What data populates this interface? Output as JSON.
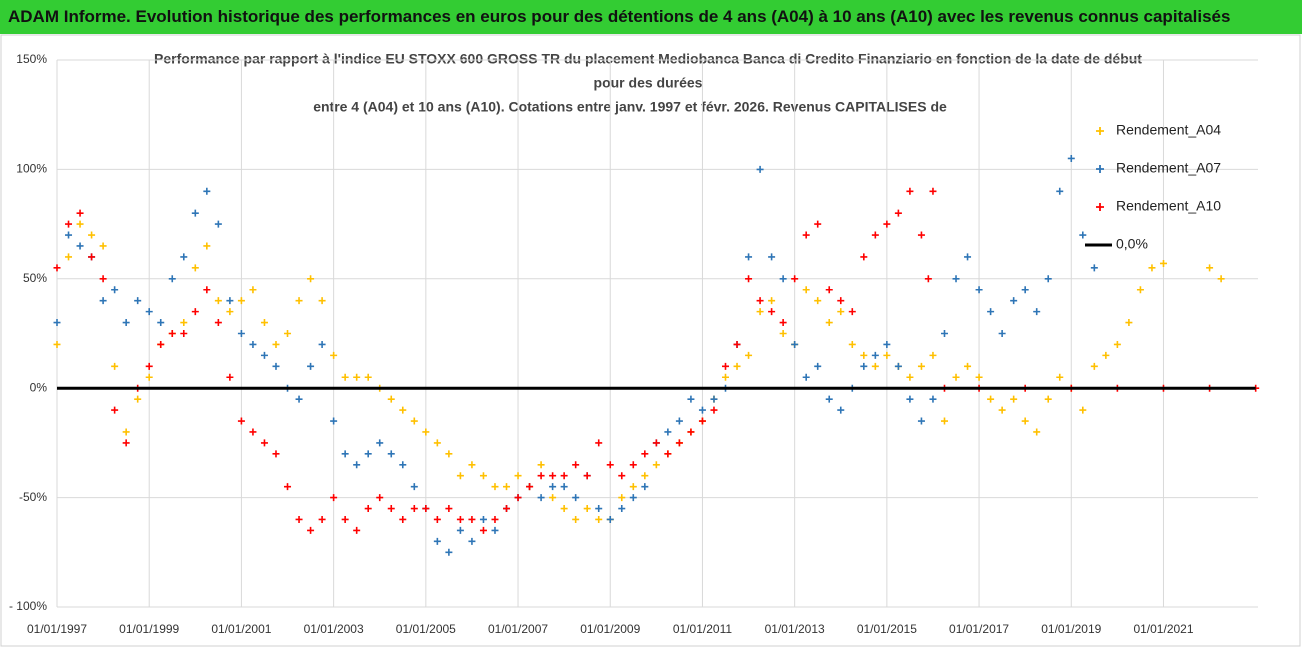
{
  "chart_data": {
    "type": "scatter",
    "title": "ADAM Informe. Evolution historique des performances en euros pour des détentions de 4 ans (A04) à 10 ans (A10) avec les revenus connus capitalisés",
    "subtitle": [
      "Performance par rapport à l'indice EU STOXX 600 GROSS TR  du placement Mediobanca Banca di Credito Finanziario en fonction de la date de début",
      "pour des durées",
      "entre 4 (A04) et 10 ans (A10).  Cotations entre janv. 1997 et févr. 2026. Revenus CAPITALISES de"
    ],
    "xlim": [
      1997,
      2023.05
    ],
    "xticks": [
      {
        "value": 1997,
        "label": "01/01/1997"
      },
      {
        "value": 1999,
        "label": "01/01/1999"
      },
      {
        "value": 2001,
        "label": "01/01/2001"
      },
      {
        "value": 2003,
        "label": "01/01/2003"
      },
      {
        "value": 2005,
        "label": "01/01/2005"
      },
      {
        "value": 2007,
        "label": "01/01/2007"
      },
      {
        "value": 2009,
        "label": "01/01/2009"
      },
      {
        "value": 2011,
        "label": "01/01/2011"
      },
      {
        "value": 2013,
        "label": "01/01/2013"
      },
      {
        "value": 2015,
        "label": "01/01/2015"
      },
      {
        "value": 2017,
        "label": "01/01/2017"
      },
      {
        "value": 2019,
        "label": "01/01/2019"
      },
      {
        "value": 2021,
        "label": "01/01/2021"
      }
    ],
    "ylim": [
      -100,
      150
    ],
    "yticks": [
      {
        "value": -100,
        "label": "- 100%"
      },
      {
        "value": -50,
        "label": "-50%"
      },
      {
        "value": 0,
        "label": "0%"
      },
      {
        "value": 50,
        "label": "50%"
      },
      {
        "value": 100,
        "label": "100%"
      },
      {
        "value": 150,
        "label": "150%"
      }
    ],
    "grid": true,
    "legend": "right",
    "series": [
      {
        "name": "Rendement_A04",
        "color": "#ffc000",
        "x": [
          1997,
          1997.25,
          1997.5,
          1997.75,
          1998,
          1998.25,
          1998.5,
          1998.75,
          1999,
          1999.25,
          1999.5,
          1999.75,
          2000,
          2000.25,
          2000.5,
          2000.75,
          2001,
          2001.25,
          2001.5,
          2001.75,
          2002,
          2002.25,
          2002.5,
          2002.75,
          2003,
          2003.25,
          2003.5,
          2003.75,
          2004,
          2004.25,
          2004.5,
          2004.75,
          2005,
          2005.25,
          2005.5,
          2005.75,
          2006,
          2006.25,
          2006.5,
          2006.75,
          2007,
          2007.25,
          2007.5,
          2007.75,
          2008,
          2008.25,
          2008.5,
          2008.75,
          2009,
          2009.25,
          2009.5,
          2009.75,
          2010,
          2010.25,
          2010.5,
          2010.75,
          2011,
          2011.25,
          2011.5,
          2011.75,
          2012,
          2012.25,
          2012.5,
          2012.75,
          2013,
          2013.25,
          2013.5,
          2013.75,
          2014,
          2014.25,
          2014.5,
          2014.75,
          2015,
          2015.25,
          2015.5,
          2015.75,
          2016,
          2016.25,
          2016.5,
          2016.75,
          2017,
          2017.25,
          2017.5,
          2017.75,
          2018,
          2018.25,
          2018.5,
          2018.75,
          2019,
          2019.25,
          2019.5,
          2019.75,
          2020,
          2020.25,
          2020.5,
          2020.75,
          2021,
          2022,
          2022.25
        ],
        "values": [
          20,
          60,
          75,
          70,
          65,
          10,
          -20,
          -5,
          5,
          20,
          25,
          30,
          55,
          65,
          40,
          35,
          40,
          45,
          30,
          20,
          25,
          40,
          50,
          40,
          15,
          5,
          5,
          5,
          0,
          -5,
          -10,
          -15,
          -20,
          -25,
          -30,
          -40,
          -35,
          -40,
          -45,
          -45,
          -40,
          -45,
          -35,
          -50,
          -55,
          -60,
          -55,
          -60,
          -60,
          -50,
          -45,
          -40,
          -35,
          -30,
          -25,
          -20,
          -15,
          -5,
          5,
          10,
          15,
          35,
          40,
          25,
          20,
          45,
          40,
          30,
          35,
          20,
          15,
          10,
          15,
          10,
          5,
          10,
          15,
          -15,
          5,
          10,
          5,
          -5,
          -10,
          -5,
          -15,
          -20,
          -5,
          5,
          0,
          -10,
          10,
          15,
          20,
          30,
          45,
          55,
          57,
          55,
          50
        ]
      },
      {
        "name": "Rendement_A07",
        "color": "#2e75b6",
        "x": [
          1997,
          1997.25,
          1997.5,
          1997.75,
          1998,
          1998.25,
          1998.5,
          1998.75,
          1999,
          1999.25,
          1999.5,
          1999.75,
          2000,
          2000.25,
          2000.5,
          2000.75,
          2001,
          2001.25,
          2001.5,
          2001.75,
          2002,
          2002.25,
          2002.5,
          2002.75,
          2003,
          2003.25,
          2003.5,
          2003.75,
          2004,
          2004.25,
          2004.5,
          2004.75,
          2005,
          2005.25,
          2005.5,
          2005.75,
          2006,
          2006.25,
          2006.5,
          2006.75,
          2007,
          2007.25,
          2007.5,
          2007.75,
          2008,
          2008.25,
          2008.5,
          2008.75,
          2009,
          2009.25,
          2009.5,
          2009.75,
          2010,
          2010.25,
          2010.5,
          2010.75,
          2011,
          2011.25,
          2011.5,
          2011.75,
          2012,
          2012.25,
          2012.5,
          2012.75,
          2013,
          2013.25,
          2013.5,
          2013.75,
          2014,
          2014.25,
          2014.5,
          2014.75,
          2015,
          2015.25,
          2015.5,
          2015.75,
          2016,
          2016.25,
          2016.5,
          2016.75,
          2017,
          2017.25,
          2017.5,
          2017.75,
          2018,
          2018.25,
          2018.5,
          2018.75,
          2019,
          2019.25,
          2019.5
        ],
        "values": [
          30,
          70,
          65,
          60,
          40,
          45,
          30,
          40,
          35,
          30,
          50,
          60,
          80,
          90,
          75,
          40,
          25,
          20,
          15,
          10,
          0,
          -5,
          10,
          20,
          -15,
          -30,
          -35,
          -30,
          -25,
          -30,
          -35,
          -45,
          -55,
          -70,
          -75,
          -65,
          -70,
          -60,
          -65,
          -55,
          -50,
          -45,
          -50,
          -45,
          -45,
          -50,
          -40,
          -55,
          -60,
          -55,
          -50,
          -45,
          -25,
          -20,
          -15,
          -5,
          -10,
          -5,
          0,
          20,
          60,
          100,
          60,
          50,
          20,
          5,
          10,
          -5,
          -10,
          0,
          10,
          15,
          20,
          10,
          -5,
          -15,
          -5,
          25,
          50,
          60,
          45,
          35,
          25,
          40,
          45,
          35,
          50,
          90,
          105,
          70,
          55
        ]
      },
      {
        "name": "Rendement_A10",
        "color": "#ff0000",
        "x": [
          1997,
          1997.25,
          1997.5,
          1997.75,
          1998,
          1998.25,
          1998.5,
          1998.75,
          1999,
          1999.25,
          1999.5,
          1999.75,
          2000,
          2000.25,
          2000.5,
          2000.75,
          2001,
          2001.25,
          2001.5,
          2001.75,
          2002,
          2002.25,
          2002.5,
          2002.75,
          2003,
          2003.25,
          2003.5,
          2003.75,
          2004,
          2004.25,
          2004.5,
          2004.75,
          2005,
          2005.25,
          2005.5,
          2005.75,
          2006,
          2006.25,
          2006.5,
          2006.75,
          2007,
          2007.25,
          2007.5,
          2007.75,
          2008,
          2008.25,
          2008.5,
          2008.75,
          2009,
          2009.25,
          2009.5,
          2009.75,
          2010,
          2010.25,
          2010.5,
          2010.75,
          2011,
          2011.25,
          2011.5,
          2011.75,
          2012,
          2012.25,
          2012.5,
          2012.75,
          2013,
          2013.25,
          2013.5,
          2013.75,
          2014,
          2014.25,
          2014.5,
          2014.75,
          2015,
          2015.25,
          2015.5,
          2015.75,
          2015.9,
          2016,
          2016.25,
          2017,
          2018,
          2019,
          2020,
          2021,
          2022,
          2023
        ],
        "values": [
          55,
          75,
          80,
          60,
          50,
          -10,
          -25,
          0,
          10,
          20,
          25,
          25,
          35,
          45,
          30,
          5,
          -15,
          -20,
          -25,
          -30,
          -45,
          -60,
          -65,
          -60,
          -50,
          -60,
          -65,
          -55,
          -50,
          -55,
          -60,
          -55,
          -55,
          -60,
          -55,
          -60,
          -60,
          -65,
          -60,
          -55,
          -50,
          -45,
          -40,
          -40,
          -40,
          -35,
          -40,
          -25,
          -35,
          -40,
          -35,
          -30,
          -25,
          -30,
          -25,
          -20,
          -15,
          -10,
          10,
          20,
          50,
          40,
          35,
          30,
          50,
          70,
          75,
          45,
          40,
          35,
          60,
          70,
          75,
          80,
          90,
          70,
          50,
          90,
          0,
          0,
          0,
          0,
          0,
          0,
          0,
          0
        ]
      },
      {
        "name": "0,0%",
        "type": "line",
        "color": "#000000",
        "x": [
          1997,
          2023
        ],
        "values": [
          0,
          0
        ]
      }
    ]
  }
}
